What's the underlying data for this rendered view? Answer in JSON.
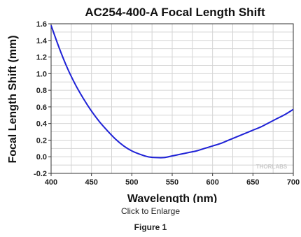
{
  "chart_data": {
    "type": "line",
    "title": "AC254-400-A Focal Length Shift",
    "xlabel": "Wavelength (nm)",
    "ylabel": "Focal Length Shift (mm)",
    "xlim": [
      400,
      700
    ],
    "ylim": [
      -0.2,
      1.6
    ],
    "xticks": [
      "400",
      "450",
      "500",
      "550",
      "600",
      "650",
      "700"
    ],
    "yticks": [
      "-0.2",
      "0.0",
      "0.2",
      "0.4",
      "0.6",
      "0.8",
      "1.0",
      "1.2",
      "1.4",
      "1.6"
    ],
    "grid": true,
    "line_color": "#1f22d6",
    "watermark": "THORLABS",
    "series": [
      {
        "x": [
          400,
          410,
          420,
          430,
          440,
          450,
          460,
          470,
          480,
          490,
          500,
          510,
          520,
          530,
          540,
          550,
          560,
          570,
          580,
          590,
          600,
          610,
          620,
          630,
          640,
          650,
          660,
          670,
          680,
          690,
          700
        ],
        "values": [
          1.58,
          1.31,
          1.07,
          0.87,
          0.7,
          0.55,
          0.42,
          0.31,
          0.21,
          0.13,
          0.07,
          0.03,
          0.0,
          -0.01,
          -0.01,
          0.01,
          0.03,
          0.05,
          0.07,
          0.1,
          0.13,
          0.16,
          0.2,
          0.24,
          0.28,
          0.32,
          0.36,
          0.41,
          0.46,
          0.51,
          0.57
        ]
      }
    ]
  },
  "captions": {
    "enlarge": "Click to Enlarge",
    "figure": "Figure 1"
  }
}
